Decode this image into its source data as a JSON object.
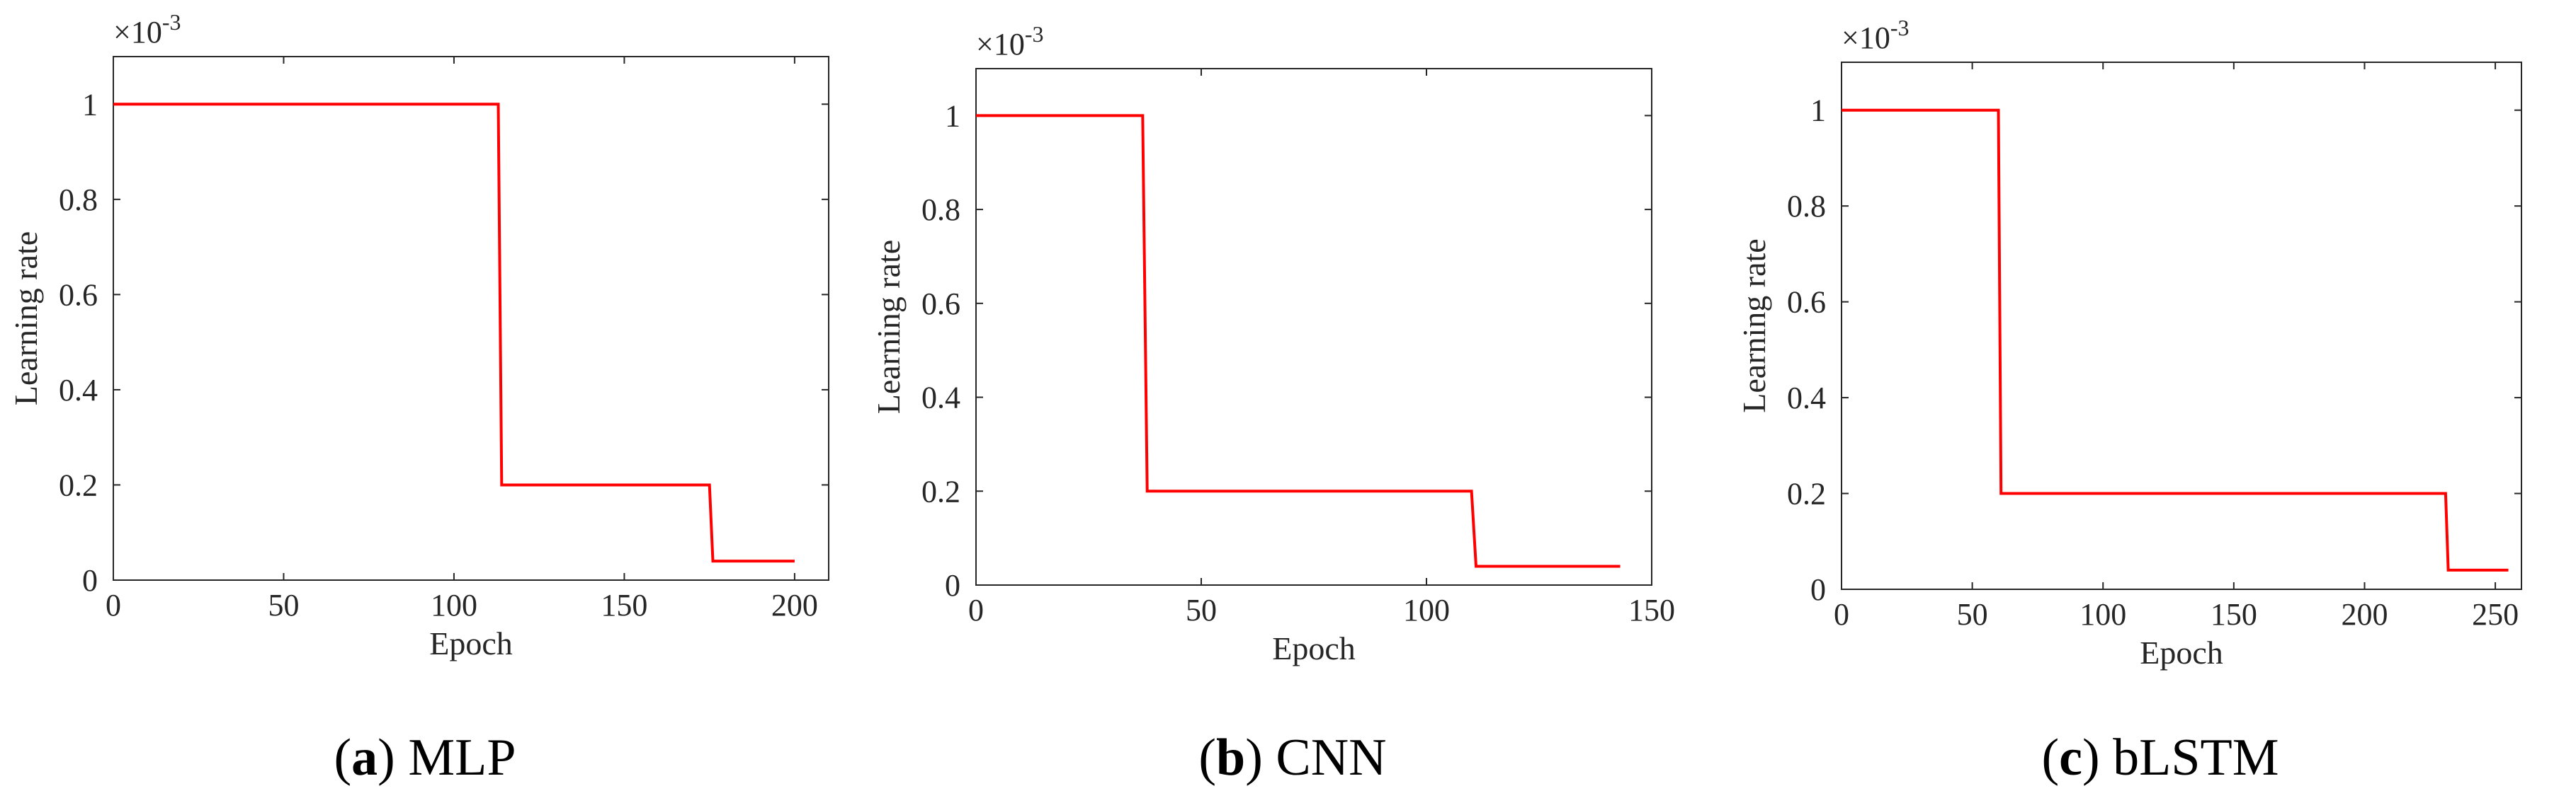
{
  "chart_data": [
    {
      "type": "line",
      "caption_letter": "a",
      "caption_name": "MLP",
      "xlabel": "Epoch",
      "ylabel": "Learning rate",
      "exponent_label": "×10",
      "exponent_power": "-3",
      "xlim": [
        0,
        210
      ],
      "ylim": [
        0,
        1.1
      ],
      "xticks": [
        0,
        50,
        100,
        150,
        200
      ],
      "yticks": [
        0,
        0.2,
        0.4,
        0.6,
        0.8,
        1
      ],
      "ytick_labels": [
        "0",
        "0.2",
        "0.4",
        "0.6",
        "0.8",
        "1"
      ],
      "series": [
        {
          "color": "#ff0000",
          "x": [
            0,
            113,
            114,
            175,
            176,
            200
          ],
          "y": [
            1,
            1,
            0.2,
            0.2,
            0.04,
            0.04
          ]
        }
      ]
    },
    {
      "type": "line",
      "caption_letter": "b",
      "caption_name": "CNN",
      "xlabel": "Epoch",
      "ylabel": "Learning rate",
      "exponent_label": "×10",
      "exponent_power": "-3",
      "xlim": [
        0,
        150
      ],
      "ylim": [
        0,
        1.1
      ],
      "xticks": [
        0,
        50,
        100,
        150
      ],
      "yticks": [
        0,
        0.2,
        0.4,
        0.6,
        0.8,
        1
      ],
      "ytick_labels": [
        "0",
        "0.2",
        "0.4",
        "0.6",
        "0.8",
        "1"
      ],
      "series": [
        {
          "color": "#ff0000",
          "x": [
            0,
            37,
            38,
            110,
            111,
            143
          ],
          "y": [
            1,
            1,
            0.2,
            0.2,
            0.04,
            0.04
          ]
        }
      ]
    },
    {
      "type": "line",
      "caption_letter": "c",
      "caption_name": "bLSTM",
      "xlabel": "Epoch",
      "ylabel": "Learning rate",
      "exponent_label": "×10",
      "exponent_power": "-3",
      "xlim": [
        0,
        260
      ],
      "ylim": [
        0,
        1.1
      ],
      "xticks": [
        0,
        50,
        100,
        150,
        200,
        250
      ],
      "yticks": [
        0,
        0.2,
        0.4,
        0.6,
        0.8,
        1
      ],
      "ytick_labels": [
        "0",
        "0.2",
        "0.4",
        "0.6",
        "0.8",
        "1"
      ],
      "series": [
        {
          "color": "#ff0000",
          "x": [
            0,
            60,
            61,
            231,
            232,
            255
          ],
          "y": [
            1,
            1,
            0.2,
            0.2,
            0.04,
            0.04
          ]
        }
      ]
    }
  ]
}
